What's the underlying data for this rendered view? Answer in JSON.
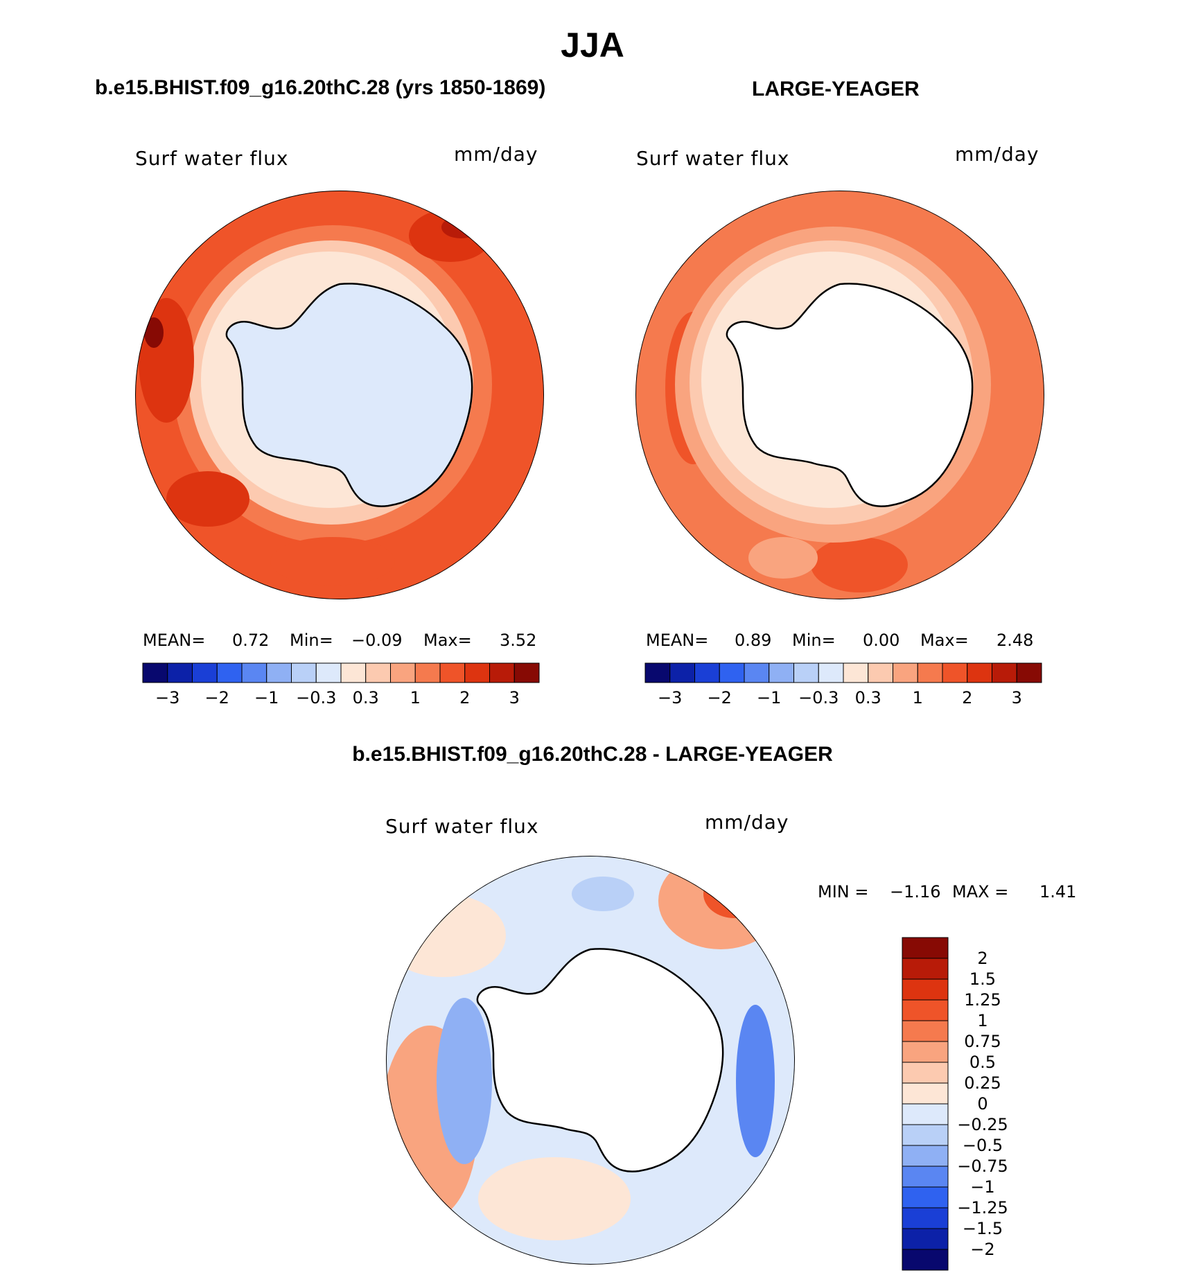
{
  "title": "JJA",
  "panels": {
    "left": {
      "header": "b.e15.BHIST.f09_g16.20thC.28 (yrs 1850-1869)",
      "label_left": "Surf  water  flux",
      "label_right": "mm/day",
      "stats": {
        "mean_label": "MEAN=",
        "mean": "0.72",
        "min_label": "Min=",
        "min": "−0.09",
        "max_label": "Max=",
        "max": "3.52"
      }
    },
    "right": {
      "header": "LARGE-YEAGER",
      "label_left": "Surf  water  flux",
      "label_right": "mm/day",
      "stats": {
        "mean_label": "MEAN=",
        "mean": "0.89",
        "min_label": "Min=",
        "min": "0.00",
        "max_label": "Max=",
        "max": "2.48"
      }
    },
    "diff": {
      "header": "b.e15.BHIST.f09_g16.20thC.28 - LARGE-YEAGER",
      "label_left": "Surf  water  flux",
      "label_right": "mm/day",
      "minmax": {
        "min_label": "MIN =",
        "min": "−1.16",
        "max_label": "MAX =",
        "max": "1.41"
      }
    }
  },
  "chart_data": [
    {
      "type": "heatmap",
      "projection": "south-polar-stereographic",
      "title": "b.e15.BHIST.f09_g16.20thC.28 (yrs 1850-1869)",
      "variable": "Surf water flux",
      "units": "mm/day",
      "mean": 0.72,
      "min": -0.09,
      "max": 3.52,
      "colorbar_tick_labels": [
        "−3",
        "−2",
        "−1",
        "−0.3",
        "0.3",
        "1",
        "2",
        "3"
      ],
      "colorbar_colors": [
        "#08086e",
        "#0c21a8",
        "#1a3fd6",
        "#2f62f0",
        "#5a86f2",
        "#8fb0f4",
        "#b9d0f7",
        "#dde9fb",
        "#fde6d6",
        "#fccab0",
        "#f9a47f",
        "#f57a4e",
        "#ef5429",
        "#dd3410",
        "#b81b08",
        "#870a04"
      ]
    },
    {
      "type": "heatmap",
      "projection": "south-polar-stereographic",
      "title": "LARGE-YEAGER",
      "variable": "Surf water flux",
      "units": "mm/day",
      "mean": 0.89,
      "min": 0.0,
      "max": 2.48,
      "colorbar_tick_labels": [
        "−3",
        "−2",
        "−1",
        "−0.3",
        "0.3",
        "1",
        "2",
        "3"
      ],
      "colorbar_colors": [
        "#08086e",
        "#0c21a8",
        "#1a3fd6",
        "#2f62f0",
        "#5a86f2",
        "#8fb0f4",
        "#b9d0f7",
        "#dde9fb",
        "#fde6d6",
        "#fccab0",
        "#f9a47f",
        "#f57a4e",
        "#ef5429",
        "#dd3410",
        "#b81b08",
        "#870a04"
      ]
    },
    {
      "type": "heatmap",
      "projection": "south-polar-stereographic",
      "title": "b.e15.BHIST.f09_g16.20thC.28 - LARGE-YEAGER",
      "variable": "Surf water flux",
      "units": "mm/day",
      "min": -1.16,
      "max": 1.41,
      "colorbar_tick_labels": [
        "2",
        "1.5",
        "1.25",
        "1",
        "0.75",
        "0.5",
        "0.25",
        "0",
        "−0.25",
        "−0.5",
        "−0.75",
        "−1",
        "−1.25",
        "−1.5",
        "−2"
      ],
      "colorbar_colors": [
        "#870a04",
        "#b81b08",
        "#dd3410",
        "#ef5429",
        "#f57a4e",
        "#f9a47f",
        "#fccab0",
        "#fde6d6",
        "#dde9fb",
        "#b9d0f7",
        "#8fb0f4",
        "#5a86f2",
        "#2f62f0",
        "#1a3fd6",
        "#0c21a8",
        "#08086e"
      ]
    }
  ]
}
